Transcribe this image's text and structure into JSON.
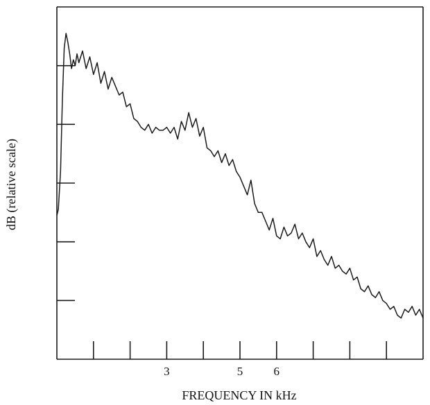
{
  "chart_data": {
    "type": "line",
    "title": "",
    "xlabel": "FREQUENCY IN kHz",
    "ylabel": "dB (relative scale)",
    "xlim": [
      0,
      10
    ],
    "ylim": [
      0,
      6
    ],
    "x_ticks": [
      1,
      2,
      3,
      4,
      5,
      6,
      7,
      8,
      9
    ],
    "x_tick_labels": [
      {
        "x": 3,
        "label": "3"
      },
      {
        "x": 5,
        "label": "5"
      },
      {
        "x": 6,
        "label": "6"
      }
    ],
    "y_ticks": [
      1,
      2,
      3,
      4,
      5
    ],
    "grid": false,
    "legend": "none",
    "line_color": "#1a1a1a",
    "series": [
      {
        "x": [
          0.0,
          0.04,
          0.1,
          0.15,
          0.2,
          0.25,
          0.3,
          0.35,
          0.4,
          0.45,
          0.5,
          0.55,
          0.6,
          0.7,
          0.8,
          0.9,
          1.0,
          1.1,
          1.2,
          1.3,
          1.4,
          1.5,
          1.6,
          1.7,
          1.8,
          1.9,
          2.0,
          2.1,
          2.2,
          2.3,
          2.4,
          2.5,
          2.6,
          2.7,
          2.8,
          2.9,
          3.0,
          3.1,
          3.2,
          3.3,
          3.4,
          3.5,
          3.6,
          3.7,
          3.8,
          3.9,
          4.0,
          4.1,
          4.2,
          4.3,
          4.4,
          4.5,
          4.6,
          4.7,
          4.8,
          4.9,
          5.0,
          5.1,
          5.2,
          5.3,
          5.4,
          5.5,
          5.6,
          5.7,
          5.8,
          5.9,
          6.0,
          6.1,
          6.2,
          6.3,
          6.4,
          6.5,
          6.6,
          6.7,
          6.8,
          6.9,
          7.0,
          7.1,
          7.2,
          7.3,
          7.4,
          7.5,
          7.6,
          7.7,
          7.8,
          7.9,
          8.0,
          8.1,
          8.2,
          8.3,
          8.4,
          8.5,
          8.6,
          8.7,
          8.8,
          8.9,
          9.0,
          9.1,
          9.2,
          9.3,
          9.4,
          9.5,
          9.6,
          9.7,
          9.8,
          9.9,
          10.0
        ],
        "y": [
          2.45,
          2.55,
          3.2,
          4.4,
          5.3,
          5.55,
          5.4,
          5.2,
          4.95,
          5.1,
          5.0,
          5.2,
          5.05,
          5.25,
          4.95,
          5.15,
          4.85,
          5.05,
          4.7,
          4.9,
          4.6,
          4.8,
          4.65,
          4.5,
          4.55,
          4.3,
          4.35,
          4.1,
          4.05,
          3.95,
          3.9,
          4.0,
          3.85,
          3.95,
          3.9,
          3.9,
          3.95,
          3.85,
          3.95,
          3.75,
          4.05,
          3.9,
          4.2,
          3.95,
          4.1,
          3.8,
          3.95,
          3.6,
          3.55,
          3.45,
          3.55,
          3.35,
          3.5,
          3.3,
          3.4,
          3.2,
          3.1,
          2.95,
          2.8,
          3.05,
          2.65,
          2.5,
          2.5,
          2.35,
          2.2,
          2.4,
          2.1,
          2.05,
          2.25,
          2.1,
          2.15,
          2.3,
          2.05,
          2.15,
          2.0,
          1.9,
          2.05,
          1.75,
          1.85,
          1.7,
          1.6,
          1.75,
          1.55,
          1.6,
          1.5,
          1.45,
          1.55,
          1.35,
          1.4,
          1.2,
          1.15,
          1.25,
          1.1,
          1.05,
          1.15,
          1.0,
          0.95,
          0.85,
          0.9,
          0.75,
          0.7,
          0.85,
          0.8,
          0.9,
          0.75,
          0.85,
          0.7
        ]
      }
    ]
  }
}
